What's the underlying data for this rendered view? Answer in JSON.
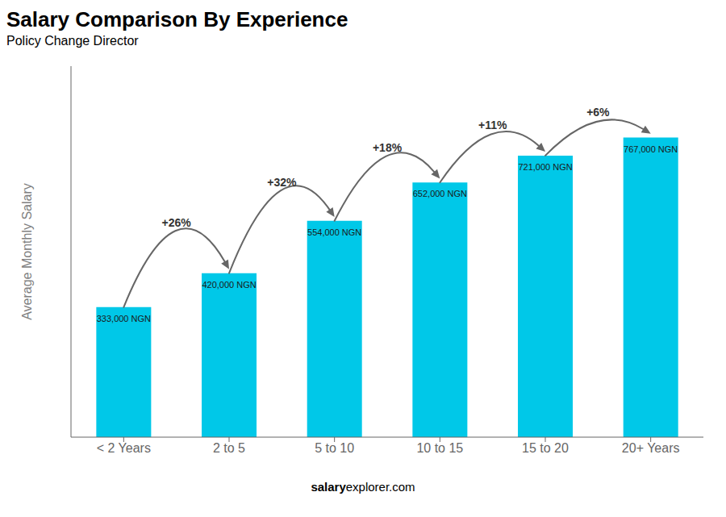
{
  "chart_data": {
    "type": "bar",
    "title": "Salary Comparison By Experience",
    "subtitle": "Policy Change Director",
    "categories": [
      "< 2 Years",
      "2 to 5",
      "5 to 10",
      "10 to 15",
      "15 to 20",
      "20+ Years"
    ],
    "values": [
      333000,
      420000,
      554000,
      652000,
      721000,
      767000
    ],
    "value_labels": [
      "333,000 NGN",
      "420,000 NGN",
      "554,000 NGN",
      "652,000 NGN",
      "721,000 NGN",
      "767,000 NGN"
    ],
    "data_labels": true,
    "annotations": [
      "+26%",
      "+32%",
      "+18%",
      "+11%",
      "+6%"
    ],
    "ylabel": "Average Monthly Salary",
    "footer": [
      "salary",
      "explorer.com"
    ],
    "color": "#00c8e8",
    "ylim": [
      0,
      950000
    ],
    "tick_labels": "x",
    "grid": false
  }
}
